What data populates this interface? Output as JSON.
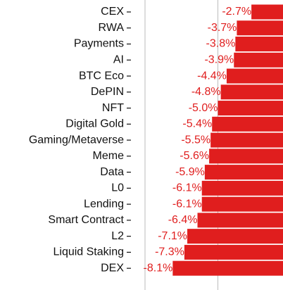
{
  "chart_data": {
    "type": "barh",
    "categories": [
      "CEX",
      "RWA",
      "Payments",
      "AI",
      "BTC Eco",
      "DePIN",
      "NFT",
      "Digital Gold",
      "Gaming/Metaverse",
      "Meme",
      "Data",
      "L0",
      "Lending",
      "Smart Contract",
      "L2",
      "Liquid Staking",
      "DEX"
    ],
    "values": [
      -2.7,
      -3.7,
      -3.8,
      -3.9,
      -4.4,
      -4.8,
      -5.0,
      -5.4,
      -5.5,
      -5.6,
      -5.9,
      -6.1,
      -6.1,
      -6.4,
      -7.1,
      -7.3,
      -8.1
    ],
    "value_labels": [
      "-2.7%",
      "-3.7%",
      "-3.8%",
      "-3.9%",
      "-4.4%",
      "-4.8%",
      "-5.0%",
      "-5.4%",
      "-5.5%",
      "-5.6%",
      "-5.9%",
      "-6.1%",
      "-6.1%",
      "-6.4%",
      "-7.1%",
      "-7.3%",
      "-8.1%"
    ],
    "color": "#e01e1e",
    "xlim": [
      -10,
      0
    ],
    "xticks": [
      -10,
      -5,
      0
    ],
    "grid": true
  }
}
